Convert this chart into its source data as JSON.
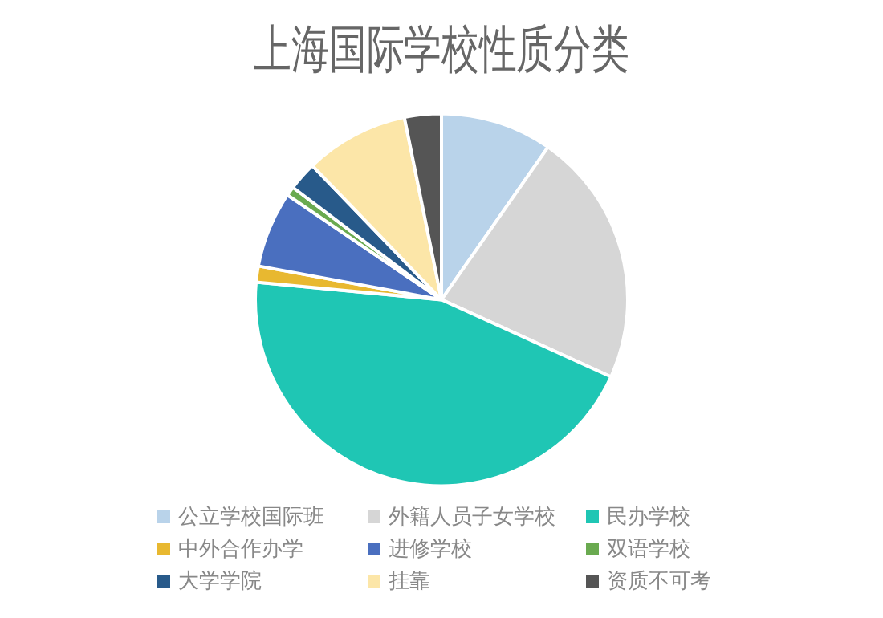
{
  "chart_data": {
    "type": "pie",
    "title": "上海国际学校性质分类",
    "categories": [
      "公立学校国际班",
      "外籍人员子女学校",
      "民办学校",
      "中外合作办学",
      "进修学校",
      "双语学校",
      "大学学院",
      "挂靠",
      "资质不可考"
    ],
    "values": [
      9.7,
      22.1,
      44.7,
      1.4,
      6.6,
      0.8,
      2.5,
      9.0,
      3.2
    ],
    "colors": [
      "#b9d3ea",
      "#d6d6d6",
      "#1fc6b4",
      "#e8b830",
      "#4a6fbf",
      "#6aaa50",
      "#285a8a",
      "#fce6a8",
      "#555555"
    ],
    "legend": "bottom"
  }
}
